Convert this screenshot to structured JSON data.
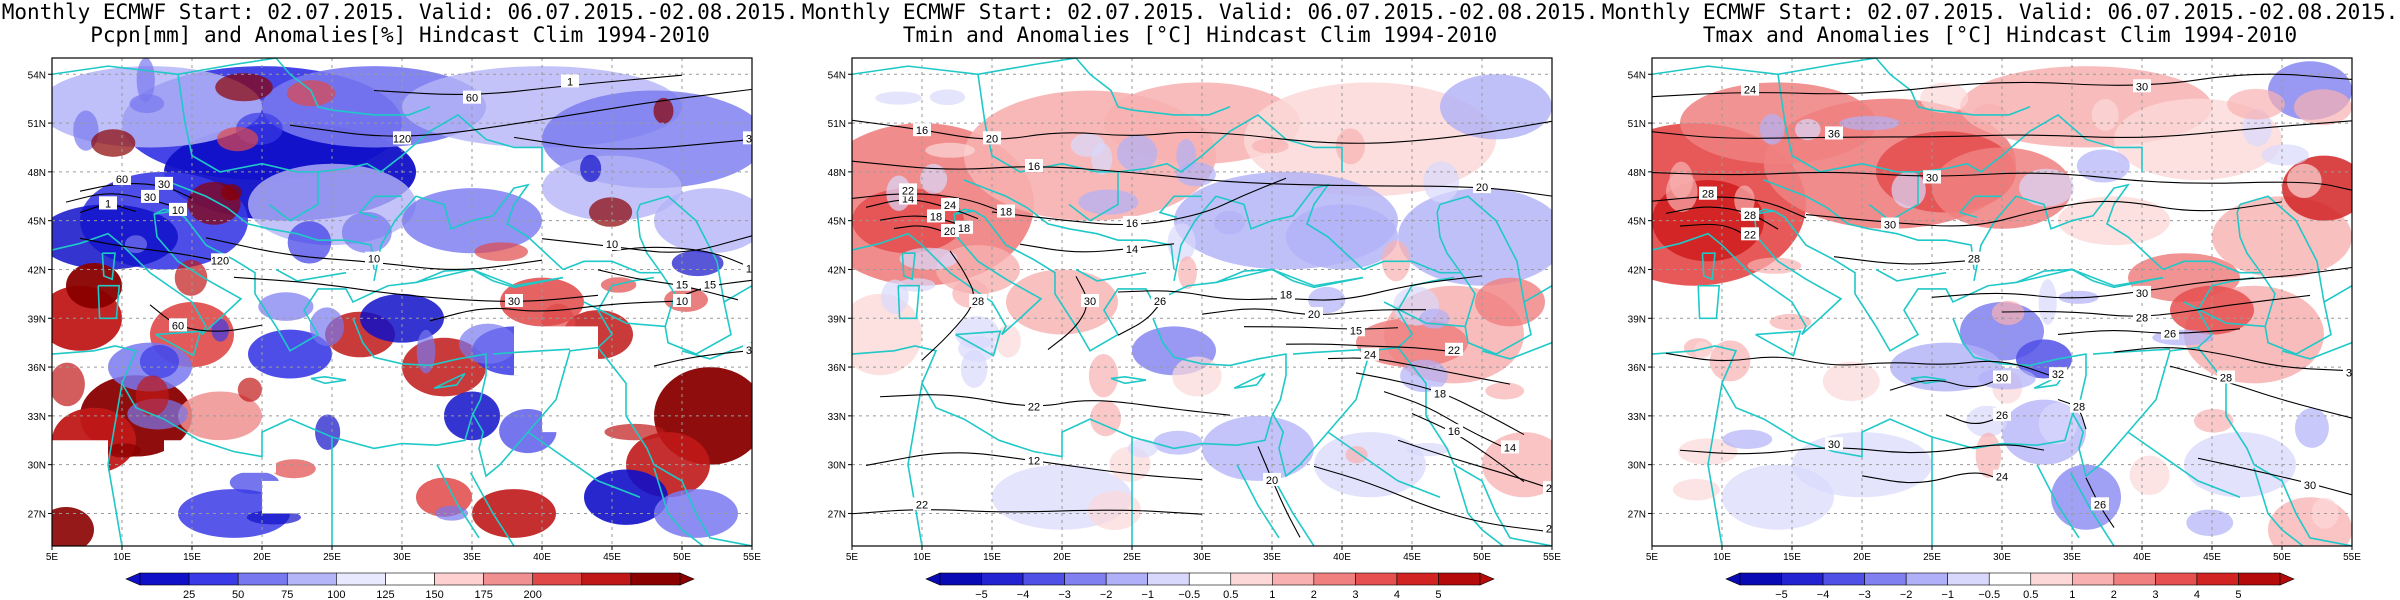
{
  "panels": [
    {
      "title_line1": "Monthly ECMWF Start: 02.07.2015. Valid: 06.07.2015.-02.08.2015.",
      "title_line2": "Pcpn[mm] and Anomalies[%] Hindcast Clim 1994-2010",
      "colorbar": {
        "labels": [
          "25",
          "50",
          "75",
          "100",
          "125",
          "150",
          "175",
          "200"
        ],
        "colors": [
          "#1010c8",
          "#3a3ae6",
          "#7878f0",
          "#b4b4f8",
          "#e8e8ff",
          "#ffffff",
          "#ffd0d0",
          "#f09090",
          "#e04848",
          "#c01818",
          "#8a0000"
        ]
      },
      "contour_labels": [
        "60",
        "30",
        "30",
        "60",
        "120",
        "30",
        "10",
        "15",
        "10",
        "10",
        "30",
        "10",
        "15",
        "30",
        "120",
        "60",
        "30",
        "10",
        "1",
        "1"
      ],
      "map_variant": "pcpn"
    },
    {
      "title_line1": "Monthly ECMWF Start: 02.07.2015. Valid: 06.07.2015.-02.08.2015.",
      "title_line2": "Tmin and Anomalies [°C] Hindcast Clim 1994-2010",
      "colorbar": {
        "labels": [
          "−5",
          "−4",
          "−3",
          "−2",
          "−1",
          "−0.5",
          "0.5",
          "1",
          "2",
          "3",
          "4",
          "5"
        ],
        "colors": [
          "#0a0ab4",
          "#2323d2",
          "#5050e6",
          "#8080f0",
          "#b0b0f8",
          "#d8d8fc",
          "#ffffff",
          "#fcd8d8",
          "#f8b0b0",
          "#f08080",
          "#e65050",
          "#d22323",
          "#b40a0a"
        ]
      },
      "contour_labels": [
        "16",
        "16",
        "18",
        "14",
        "18",
        "20",
        "16",
        "14",
        "18",
        "20",
        "15",
        "22",
        "24",
        "18",
        "14",
        "16",
        "22",
        "12",
        "20",
        "22",
        "24",
        "28",
        "30",
        "26",
        "22",
        "20",
        "20",
        "22",
        "24",
        "18"
      ],
      "map_variant": "tmin"
    },
    {
      "title_line1": "Monthly ECMWF Start: 02.07.2015. Valid: 06.07.2015.-02.08.2015.",
      "title_line2": "Tmax and Anomalies [°C] Hindcast Clim 1994-2010",
      "colorbar": {
        "labels": [
          "−5",
          "−4",
          "−3",
          "−2",
          "−1",
          "−0.5",
          "0.5",
          "1",
          "2",
          "3",
          "4",
          "5"
        ],
        "colors": [
          "#0a0ab4",
          "#2323d2",
          "#5050e6",
          "#8080f0",
          "#b0b0f8",
          "#d8d8fc",
          "#ffffff",
          "#fcd8d8",
          "#f8b0b0",
          "#f08080",
          "#e65050",
          "#d22323",
          "#b40a0a"
        ]
      },
      "contour_labels": [
        "24",
        "26",
        "24",
        "26",
        "28",
        "22",
        "30",
        "28",
        "30",
        "28",
        "26",
        "30",
        "28",
        "32",
        "30",
        "26",
        "30",
        "24",
        "28",
        "30",
        "26",
        "30",
        "36",
        "30",
        "28"
      ],
      "map_variant": "tmax"
    }
  ],
  "axes": {
    "lon_labels": [
      "5E",
      "10E",
      "15E",
      "20E",
      "25E",
      "30E",
      "35E",
      "40E",
      "45E",
      "50E",
      "55E"
    ],
    "lat_labels": [
      "54N",
      "51N",
      "48N",
      "45N",
      "42N",
      "39N",
      "36N",
      "33N",
      "30N",
      "27N"
    ]
  },
  "colors": {
    "coast": "#20c8c8",
    "grid": "#9a9a9a",
    "contour": "#000000"
  }
}
